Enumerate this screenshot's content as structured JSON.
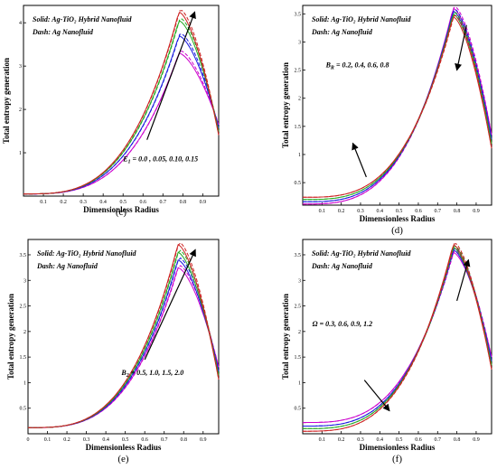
{
  "chart_data": [
    {
      "type": "line",
      "panel_label": "(c)",
      "xlabel": "Dimensionless Radius",
      "ylabel": "Total entropy generation",
      "xlim": [
        0.0,
        0.98
      ],
      "ylim": [
        0,
        4.4
      ],
      "xticks": [
        "0.1",
        "0.2",
        "0.3",
        "0.4",
        "0.5",
        "0.6",
        "0.7",
        "0.8",
        "0.9"
      ],
      "yticks": [
        "1",
        "2",
        "3",
        "4"
      ],
      "legend_solid": "Solid: Ag-TiO₂ Hybrid Nanofluid",
      "legend_dash": "Dash: Ag Nanofluid",
      "param_sym": "E",
      "param_sub": "1",
      "param_vals": " = 0.0 , 0.05, 0.10, 0.15",
      "series_colors": [
        "#cc00cc",
        "#1a1adf",
        "#22aa22",
        "#cc2222"
      ],
      "peaks": [
        3.3,
        3.7,
        4.05,
        4.25
      ],
      "base": 0.05,
      "peak_x": 0.78,
      "end_y": 1.65,
      "dash_offset": 0.06,
      "arrow": {
        "from": [
          0.62,
          1.3
        ],
        "to": [
          0.86,
          4.25
        ]
      }
    },
    {
      "type": "line",
      "panel_label": "(d)",
      "xlabel": "Dimensionless Radius",
      "ylabel": "Total entropy generation",
      "xlim": [
        0.0,
        0.98
      ],
      "ylim": [
        0.1,
        3.65
      ],
      "xticks": [
        "0.1",
        "0.2",
        "0.3",
        "0.4",
        "0.5",
        "0.6",
        "0.7",
        "0.8",
        "0.9"
      ],
      "yticks": [
        "0.5",
        "1",
        "1.5",
        "2",
        "2.5",
        "3",
        "3.5"
      ],
      "legend_solid": "Solid: Ag-TiO₂ Hybrid Nanofluid",
      "legend_dash": "Dash: Ag Nanofluid",
      "param_sym": "B",
      "param_sub": "R",
      "param_vals": " = 0.2, 0.4, 0.6, 0.8",
      "series_colors": [
        "#cc00cc",
        "#1a1adf",
        "#22aa22",
        "#cc2222"
      ],
      "peaks": [
        3.6,
        3.55,
        3.5,
        3.45
      ],
      "bases": [
        0.12,
        0.16,
        0.2,
        0.24
      ],
      "peak_x": 0.78,
      "end_y": 1.35,
      "dash_offset": 0.04,
      "arrow": {
        "from": [
          0.33,
          0.6
        ],
        "to": [
          0.26,
          1.2
        ]
      },
      "arrow2": {
        "from": [
          0.85,
          3.3
        ],
        "to": [
          0.8,
          2.5
        ]
      }
    },
    {
      "type": "line",
      "panel_label": "(e)",
      "xlabel": "Dimensionless Radius",
      "ylabel": "Total entropy generation",
      "xlim": [
        0.0,
        0.98
      ],
      "ylim": [
        0,
        3.8
      ],
      "xticks": [
        "0",
        "0.1",
        "0.2",
        "0.3",
        "0.4",
        "0.5",
        "0.6",
        "0.7",
        "0.8",
        "0.9"
      ],
      "yticks": [
        "0.5",
        "1",
        "1.5",
        "2",
        "2.5",
        "3",
        "3.5"
      ],
      "legend_solid": "Solid: Ag-TiO₂ Hybrid Nanofluid",
      "legend_dash": "Dash: Ag Nanofluid",
      "param_sym": "B",
      "param_sub": "2",
      "param_vals": " = 0.5, 1.0, 1.5, 2.0",
      "series_colors": [
        "#cc00cc",
        "#1a1adf",
        "#22aa22",
        "#cc2222"
      ],
      "peaks": [
        3.25,
        3.4,
        3.55,
        3.7
      ],
      "base": 0.12,
      "peak_x": 0.77,
      "end_y": 1.3,
      "dash_offset": 0.05,
      "arrow": {
        "from": [
          0.6,
          1.45
        ],
        "to": [
          0.86,
          3.6
        ]
      }
    },
    {
      "type": "line",
      "panel_label": "(f)",
      "xlabel": "Dimensionless Radius",
      "ylabel": "Total entropy generation",
      "xlim": [
        0.0,
        0.98
      ],
      "ylim": [
        0,
        3.8
      ],
      "xticks": [
        "0.1",
        "0.2",
        "0.3",
        "0.4",
        "0.5",
        "0.6",
        "0.7",
        "0.8",
        "0.9"
      ],
      "yticks": [
        "0.5",
        "1",
        "1.5",
        "2",
        "2.5",
        "3",
        "3.5"
      ],
      "legend_solid": "Solid: Ag-TiO₂ Hybrid Nanofluid",
      "legend_dash": "Dash: Ag Nanofluid",
      "param_sym": "Ω",
      "param_sub": "",
      "param_vals": " = 0.3, 0.6, 0.9, 1.2",
      "series_colors": [
        "#cc00cc",
        "#1a1adf",
        "#22aa22",
        "#cc2222"
      ],
      "peaks": [
        3.55,
        3.6,
        3.65,
        3.7
      ],
      "bases": [
        0.22,
        0.15,
        0.1,
        0.05
      ],
      "peak_x": 0.78,
      "end_y": 1.5,
      "dash_offset": 0.04,
      "arrow": {
        "from": [
          0.32,
          1.05
        ],
        "to": [
          0.45,
          0.45
        ]
      },
      "arrow2": {
        "from": [
          0.8,
          2.6
        ],
        "to": [
          0.86,
          3.4
        ]
      }
    }
  ]
}
